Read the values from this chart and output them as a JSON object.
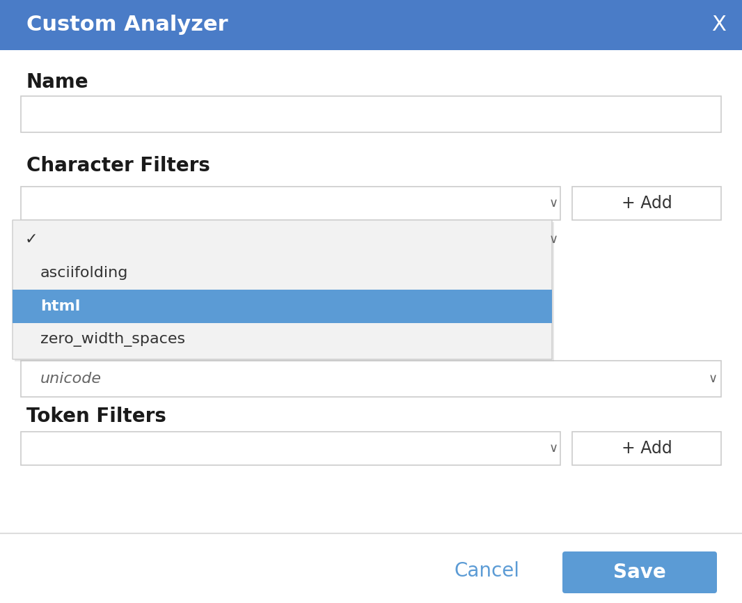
{
  "title": "Custom Analyzer",
  "title_bg": "#4a7cc7",
  "title_text_color": "#ffffff",
  "dialog_bg": "#ffffff",
  "dialog_border": "#bbbbbb",
  "footer_border": "#dddddd",
  "name_label": "Name",
  "char_filters_label": "Character Filters",
  "token_filters_label": "Token Filters",
  "input_border": "#cccccc",
  "input_bg": "#ffffff",
  "dropdown_bg": "#f2f2f2",
  "dropdown_border": "#cccccc",
  "dropdown_shadow": "#bbbbbb",
  "dropdown_selected_bg": "#5b9bd5",
  "dropdown_selected_text": "#ffffff",
  "add_btn_text": "+ Add",
  "add_btn_border": "#cccccc",
  "add_btn_bg": "#ffffff",
  "unicode_text": "unicode",
  "unicode_text_color": "#666666",
  "checkmark": "✓",
  "chevron": "∨",
  "cancel_text": "Cancel",
  "cancel_color": "#5b9bd5",
  "save_text": "Save",
  "save_bg": "#5b9bd5",
  "save_text_color": "#ffffff",
  "close_btn": "X",
  "label_color": "#1a1a1a",
  "item_color": "#333333",
  "title_fontsize": 22,
  "label_fontsize": 20,
  "item_fontsize": 16,
  "btn_fontsize": 17,
  "cancel_fontsize": 20,
  "save_fontsize": 20
}
